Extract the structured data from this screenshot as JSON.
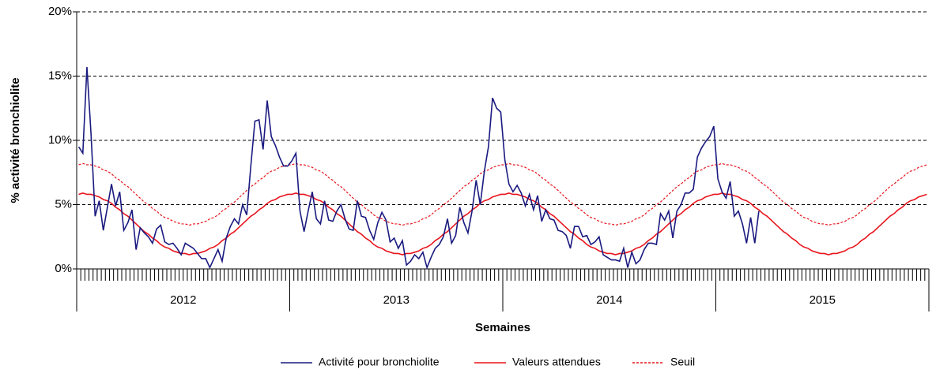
{
  "chart_data": {
    "type": "line",
    "y_label": "% activité bronchiolite",
    "x_label": "Semaines",
    "ylim": [
      0,
      20
    ],
    "yticks": [
      {
        "value": 0,
        "label": "0%"
      },
      {
        "value": 5,
        "label": "5%"
      },
      {
        "value": 10,
        "label": "10%"
      },
      {
        "value": 15,
        "label": "15%"
      },
      {
        "value": 20,
        "label": "20%"
      }
    ],
    "grid": true,
    "legend": "bottom",
    "categories": [
      "2012",
      null,
      null,
      null,
      null,
      null,
      null,
      null,
      null,
      null,
      null,
      null,
      null,
      null,
      null,
      null,
      null,
      null,
      null,
      null,
      null,
      null,
      null,
      null,
      null,
      null,
      null,
      null,
      null,
      null,
      null,
      null,
      null,
      null,
      null,
      null,
      null,
      null,
      null,
      null,
      null,
      null,
      null,
      null,
      null,
      null,
      null,
      null,
      null,
      null,
      null,
      null,
      "2013",
      null,
      null,
      null,
      null,
      null,
      null,
      null,
      null,
      null,
      null,
      null,
      null,
      null,
      null,
      null,
      null,
      null,
      null,
      null,
      null,
      null,
      null,
      null,
      null,
      null,
      null,
      null,
      null,
      null,
      null,
      null,
      null,
      null,
      null,
      null,
      null,
      null,
      null,
      null,
      null,
      null,
      null,
      null,
      null,
      null,
      null,
      null,
      null,
      null,
      null,
      null,
      "2014",
      null,
      null,
      null,
      null,
      null,
      null,
      null,
      null,
      null,
      null,
      null,
      null,
      null,
      null,
      null,
      null,
      null,
      null,
      null,
      null,
      null,
      null,
      null,
      null,
      null,
      null,
      null,
      null,
      null,
      null,
      null,
      null,
      null,
      null,
      null,
      null,
      null,
      null,
      null,
      null,
      null,
      null,
      null,
      null,
      null,
      null,
      null,
      null,
      null,
      null,
      null,
      "2015",
      null,
      null,
      null,
      null,
      null,
      null,
      null,
      null,
      null,
      null,
      null,
      null,
      null,
      null,
      null,
      null,
      null,
      null,
      null,
      null,
      null,
      null,
      null,
      null,
      null,
      null,
      null,
      null,
      null,
      null,
      null,
      null,
      null,
      null,
      null,
      null,
      null,
      null,
      null,
      null,
      null,
      null,
      null,
      null,
      null,
      null,
      null,
      null,
      null,
      null,
      null
    ],
    "series": [
      {
        "name": "Activité pour bronchiolite",
        "color": "#1a1a80",
        "line_style": "solid",
        "values": [
          9.5,
          9.0,
          15.7,
          10.5,
          4.1,
          5.3,
          3.0,
          4.8,
          6.6,
          4.9,
          6.0,
          3.0,
          3.6,
          4.6,
          1.5,
          3.2,
          2.8,
          2.5,
          2.0,
          3.1,
          3.4,
          2.1,
          1.9,
          2.0,
          1.6,
          1.1,
          2.0,
          1.8,
          1.6,
          1.2,
          0.8,
          0.8,
          0.1,
          0.8,
          1.5,
          0.6,
          2.4,
          3.3,
          3.9,
          3.5,
          5.0,
          4.2,
          8.0,
          11.5,
          11.6,
          9.3,
          13.1,
          10.3,
          9.6,
          8.7,
          8.0,
          8.0,
          8.4,
          9.0,
          4.5,
          2.9,
          4.5,
          6.0,
          3.9,
          3.5,
          5.3,
          3.8,
          3.7,
          4.5,
          5.0,
          3.9,
          3.1,
          3.0,
          5.3,
          4.1,
          4.0,
          3.0,
          2.3,
          3.6,
          4.4,
          3.8,
          2.1,
          2.4,
          1.6,
          2.2,
          0.3,
          0.6,
          1.1,
          0.8,
          1.3,
          0.1,
          0.9,
          1.6,
          1.9,
          2.5,
          3.9,
          2.0,
          2.6,
          4.8,
          3.6,
          2.8,
          4.5,
          6.9,
          5.0,
          7.6,
          9.5,
          13.3,
          12.5,
          12.2,
          8.5,
          6.6,
          6.0,
          6.5,
          5.9,
          4.9,
          5.8,
          4.6,
          5.7,
          3.7,
          4.6,
          3.9,
          3.8,
          3.0,
          2.9,
          2.6,
          1.6,
          3.3,
          3.3,
          2.5,
          2.6,
          1.9,
          2.1,
          2.5,
          1.1,
          0.9,
          0.7,
          0.7,
          0.6,
          1.6,
          0.1,
          1.3,
          0.4,
          0.7,
          1.5,
          2.0,
          2.0,
          1.9,
          4.3,
          3.8,
          4.5,
          2.4,
          4.5,
          5.0,
          5.9,
          5.9,
          6.2,
          8.7,
          9.4,
          9.9,
          10.3,
          11.1,
          7.0,
          6.0,
          5.5,
          6.8,
          4.1,
          4.5,
          3.5,
          2.0,
          4.0,
          2.0,
          4.5,
          null,
          null,
          null,
          null,
          null,
          null,
          null,
          null,
          null,
          null,
          null,
          null,
          null,
          null,
          null,
          null,
          null,
          null,
          null,
          null,
          null,
          null,
          null,
          null,
          null,
          null,
          null,
          null,
          null,
          null,
          null,
          null,
          null,
          null,
          null,
          null,
          null,
          null,
          null,
          null,
          null
        ]
      },
      {
        "name": "Valeurs attendues",
        "color": "#e8141c",
        "line_style": "solid",
        "values": [
          5.8,
          5.9,
          5.8,
          5.8,
          5.7,
          5.6,
          5.4,
          5.3,
          5.1,
          4.8,
          4.6,
          4.3,
          4.1,
          3.8,
          3.5,
          3.2,
          2.9,
          2.7,
          2.4,
          2.2,
          1.9,
          1.7,
          1.6,
          1.4,
          1.3,
          1.2,
          1.2,
          1.1,
          1.2,
          1.2,
          1.3,
          1.4,
          1.6,
          1.7,
          1.9,
          2.2,
          2.4,
          2.7,
          2.9,
          3.2,
          3.5,
          3.8,
          4.1,
          4.3,
          4.6,
          4.8,
          5.1,
          5.3,
          5.4,
          5.6,
          5.7,
          5.8,
          5.8,
          5.9,
          5.8,
          5.8,
          5.7,
          5.6,
          5.4,
          5.3,
          5.1,
          4.8,
          4.6,
          4.3,
          4.1,
          3.8,
          3.5,
          3.2,
          2.9,
          2.7,
          2.4,
          2.2,
          1.9,
          1.7,
          1.6,
          1.4,
          1.3,
          1.2,
          1.2,
          1.1,
          1.2,
          1.2,
          1.3,
          1.4,
          1.6,
          1.7,
          1.9,
          2.2,
          2.4,
          2.7,
          2.9,
          3.2,
          3.5,
          3.8,
          4.1,
          4.3,
          4.6,
          4.8,
          5.1,
          5.3,
          5.4,
          5.6,
          5.7,
          5.8,
          5.8,
          5.9,
          5.8,
          5.8,
          5.7,
          5.6,
          5.4,
          5.3,
          5.1,
          4.8,
          4.6,
          4.3,
          4.1,
          3.8,
          3.5,
          3.2,
          2.9,
          2.7,
          2.4,
          2.2,
          1.9,
          1.7,
          1.6,
          1.4,
          1.3,
          1.2,
          1.2,
          1.1,
          1.2,
          1.2,
          1.3,
          1.4,
          1.6,
          1.7,
          1.9,
          2.2,
          2.4,
          2.7,
          2.9,
          3.2,
          3.5,
          3.8,
          4.1,
          4.3,
          4.6,
          4.8,
          5.1,
          5.3,
          5.4,
          5.6,
          5.7,
          5.8,
          5.8,
          5.9,
          5.8,
          5.8,
          5.7,
          5.6,
          5.4,
          5.3,
          5.1,
          4.8,
          4.6,
          4.3,
          4.1,
          3.8,
          3.5,
          3.2,
          2.9,
          2.7,
          2.4,
          2.2,
          1.9,
          1.7,
          1.6,
          1.4,
          1.3,
          1.2,
          1.2,
          1.1,
          1.2,
          1.2,
          1.3,
          1.4,
          1.6,
          1.7,
          1.9,
          2.2,
          2.4,
          2.7,
          2.9,
          3.2,
          3.5,
          3.8,
          4.1,
          4.3,
          4.6,
          4.8,
          5.1,
          5.3,
          5.4,
          5.6,
          5.7,
          5.8
        ]
      },
      {
        "name": "Seuil",
        "color": "#e8141c",
        "line_style": "dashed",
        "values": [
          8.1,
          8.2,
          8.1,
          8.1,
          8.0,
          7.9,
          7.7,
          7.6,
          7.4,
          7.1,
          6.9,
          6.6,
          6.4,
          6.1,
          5.8,
          5.5,
          5.2,
          5.0,
          4.7,
          4.5,
          4.2,
          4.0,
          3.9,
          3.7,
          3.6,
          3.5,
          3.5,
          3.4,
          3.5,
          3.5,
          3.6,
          3.7,
          3.9,
          4.0,
          4.2,
          4.5,
          4.7,
          5.0,
          5.2,
          5.5,
          5.8,
          6.1,
          6.4,
          6.6,
          6.9,
          7.1,
          7.4,
          7.6,
          7.7,
          7.9,
          8.0,
          8.1,
          8.1,
          8.2,
          8.1,
          8.1,
          8.0,
          7.9,
          7.7,
          7.6,
          7.4,
          7.1,
          6.9,
          6.6,
          6.4,
          6.1,
          5.8,
          5.5,
          5.2,
          5.0,
          4.7,
          4.5,
          4.2,
          4.0,
          3.9,
          3.7,
          3.6,
          3.5,
          3.5,
          3.4,
          3.5,
          3.5,
          3.6,
          3.7,
          3.9,
          4.0,
          4.2,
          4.5,
          4.7,
          5.0,
          5.2,
          5.5,
          5.8,
          6.1,
          6.4,
          6.6,
          6.9,
          7.1,
          7.4,
          7.6,
          7.7,
          7.9,
          8.0,
          8.1,
          8.1,
          8.2,
          8.1,
          8.1,
          8.0,
          7.9,
          7.7,
          7.6,
          7.4,
          7.1,
          6.9,
          6.6,
          6.4,
          6.1,
          5.8,
          5.5,
          5.2,
          5.0,
          4.7,
          4.5,
          4.2,
          4.0,
          3.9,
          3.7,
          3.6,
          3.5,
          3.5,
          3.4,
          3.5,
          3.5,
          3.6,
          3.7,
          3.9,
          4.0,
          4.2,
          4.5,
          4.7,
          5.0,
          5.2,
          5.5,
          5.8,
          6.1,
          6.4,
          6.6,
          6.9,
          7.1,
          7.4,
          7.6,
          7.7,
          7.9,
          8.0,
          8.1,
          8.1,
          8.2,
          8.1,
          8.1,
          8.0,
          7.9,
          7.7,
          7.6,
          7.4,
          7.1,
          6.9,
          6.6,
          6.4,
          6.1,
          5.8,
          5.5,
          5.2,
          5.0,
          4.7,
          4.5,
          4.2,
          4.0,
          3.9,
          3.7,
          3.6,
          3.5,
          3.5,
          3.4,
          3.5,
          3.5,
          3.6,
          3.7,
          3.9,
          4.0,
          4.2,
          4.5,
          4.7,
          5.0,
          5.2,
          5.5,
          5.8,
          6.1,
          6.4,
          6.6,
          6.9,
          7.1,
          7.4,
          7.6,
          7.7,
          7.9,
          8.0,
          8.1
        ]
      }
    ]
  }
}
